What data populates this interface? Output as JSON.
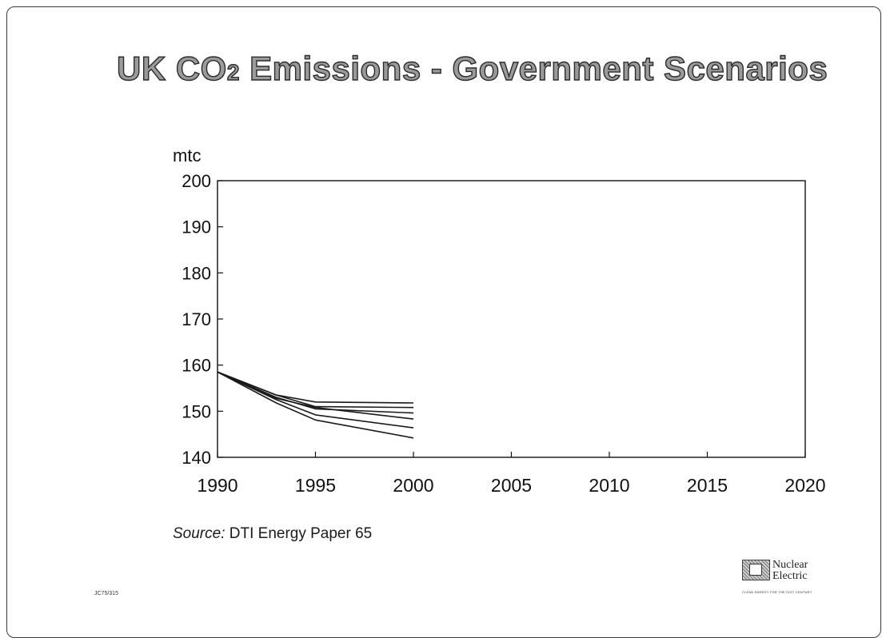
{
  "page": {
    "title_main": "UK CO",
    "title_subscript": "2",
    "title_rest": " Emissions - Government Scenarios",
    "source_label": "Source:",
    "source_text": " DTI Energy Paper 65",
    "doc_code": "JC75/315",
    "logo_line1": "Nuclear",
    "logo_line2": "Electric",
    "logo_tagline": "CLEAN ENERGY FOR THE 21ST CENTURY"
  },
  "chart_data": {
    "type": "line",
    "title": "UK CO2 Emissions - Government Scenarios",
    "ylabel": "mtc",
    "xlabel": "",
    "xlim": [
      1990,
      2020
    ],
    "ylim": [
      140,
      200
    ],
    "x_ticks": [
      1990,
      1995,
      2000,
      2005,
      2010,
      2015,
      2020
    ],
    "y_ticks": [
      140,
      150,
      160,
      170,
      180,
      190,
      200
    ],
    "grid": false,
    "legend": "none",
    "line_color": "#1a1a1a",
    "series": [
      {
        "x": [
          1990,
          1993,
          1995,
          2000
        ],
        "y": [
          158.5,
          153.5,
          152,
          151.8
        ]
      },
      {
        "x": [
          1990,
          1993,
          1995,
          2000
        ],
        "y": [
          158.5,
          153.5,
          151,
          150.8
        ]
      },
      {
        "x": [
          1990,
          1993,
          1995,
          2000
        ],
        "y": [
          158.5,
          153,
          150.5,
          149.6
        ]
      },
      {
        "x": [
          1990,
          1993,
          1995,
          2000
        ],
        "y": [
          158.5,
          152.8,
          150.8,
          148.3
        ]
      },
      {
        "x": [
          1990,
          1993,
          1995,
          2000
        ],
        "y": [
          158.5,
          152.5,
          149.2,
          146.4
        ]
      },
      {
        "x": [
          1990,
          1993,
          1995,
          2000
        ],
        "y": [
          158.5,
          151.8,
          148.1,
          144.2
        ]
      }
    ]
  }
}
